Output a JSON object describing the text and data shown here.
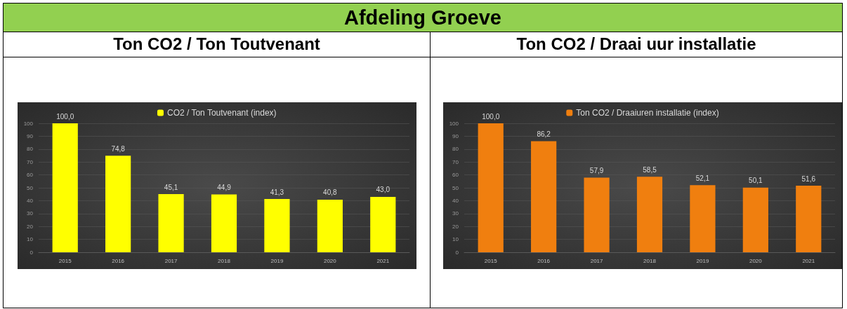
{
  "chart_data": [
    {
      "type": "other",
      "title": "Afdeling Groeve"
    },
    {
      "type": "bar",
      "title": "Ton CO2 / Ton Toutvenant",
      "categories": [
        "2015",
        "2016",
        "2017",
        "2018",
        "2019",
        "2020",
        "2021"
      ],
      "series": [
        {
          "name": "CO2 / Ton Toutvenant (index)",
          "color": "#ffff00",
          "values": [
            100.0,
            74.8,
            45.1,
            44.9,
            41.3,
            40.8,
            43.0
          ],
          "value_labels": [
            "100,0",
            "74,8",
            "45,1",
            "44,9",
            "41,3",
            "40,8",
            "43,0"
          ]
        }
      ],
      "ylim": [
        0,
        100
      ],
      "yticks": [
        0,
        10,
        20,
        30,
        40,
        50,
        60,
        70,
        80,
        90,
        100
      ],
      "grid": "y",
      "legend": "top"
    },
    {
      "type": "bar",
      "title": "Ton CO2 / Draai uur installatie",
      "categories": [
        "2015",
        "2016",
        "2017",
        "2018",
        "2019",
        "2020",
        "2021"
      ],
      "series": [
        {
          "name": "Ton CO2 / Draaiuren installatie (index)",
          "color": "#f07f0f",
          "values": [
            100.0,
            86.2,
            57.9,
            58.5,
            52.1,
            50.1,
            51.6
          ],
          "value_labels": [
            "100,0",
            "86,2",
            "57,9",
            "58,5",
            "52,1",
            "50,1",
            "51,6"
          ]
        }
      ],
      "ylim": [
        0,
        100
      ],
      "yticks": [
        0,
        10,
        20,
        30,
        40,
        50,
        60,
        70,
        80,
        90,
        100
      ],
      "grid": "y",
      "legend": "top"
    }
  ]
}
